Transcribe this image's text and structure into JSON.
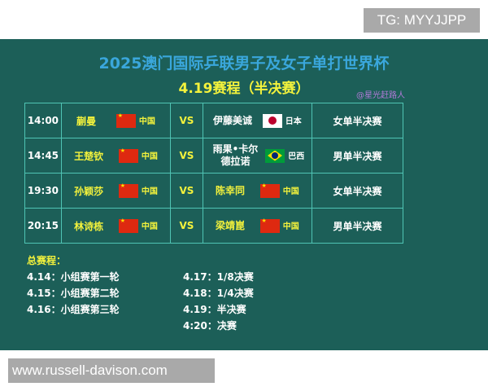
{
  "watermark_top": "TG: MYYJJPP",
  "watermark_bottom": "www.russell-davison.com",
  "title": "2025澳门国际乒联男子及女子单打世界杯",
  "subtitle": "4.19赛程（半决赛）",
  "handle": "@星光赶路人",
  "colors": {
    "background": "#1c5f58",
    "title": "#3aa7dc",
    "highlight": "#f3f23c",
    "border": "#4fc4b4"
  },
  "matches": [
    {
      "time": "14:00",
      "p1": "蒯曼",
      "c1": "中国",
      "f1": "cn",
      "vs": "VS",
      "p2": "伊藤美诚",
      "c2": "日本",
      "f2": "jp",
      "event": "女单半决赛"
    },
    {
      "time": "14:45",
      "p1": "王楚钦",
      "c1": "中国",
      "f1": "cn",
      "vs": "VS",
      "p2": "雨果•卡尔德拉诺",
      "c2": "巴西",
      "f2": "br",
      "event": "男单半决赛"
    },
    {
      "time": "19:30",
      "p1": "孙颖莎",
      "c1": "中国",
      "f1": "cn",
      "vs": "VS",
      "p2": "陈幸同",
      "c2": "中国",
      "f2": "cn",
      "event": "女单半决赛"
    },
    {
      "time": "20:15",
      "p1": "林诗栋",
      "c1": "中国",
      "f1": "cn",
      "vs": "VS",
      "p2": "梁靖崑",
      "c2": "中国",
      "f2": "cn",
      "event": "男单半决赛"
    }
  ],
  "schedule": {
    "heading": "总赛程：",
    "left": [
      "4.14：小组赛第一轮",
      "4.15：小组赛第二轮",
      "4.16：小组赛第三轮"
    ],
    "right": [
      "4.17：1/8决赛",
      "4.18：1/4决赛",
      "4.19：半决赛",
      "4:20：决赛"
    ]
  }
}
